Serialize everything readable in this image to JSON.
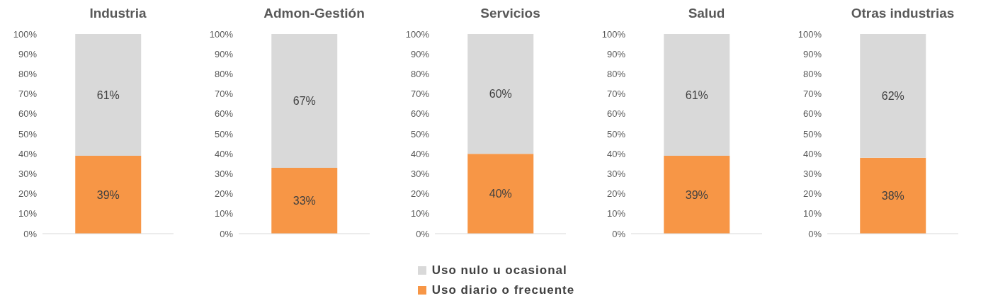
{
  "chart_data": [
    {
      "type": "bar",
      "title": "Industria",
      "categories": [
        null
      ],
      "stacked": true,
      "ylim": [
        0,
        100
      ],
      "yticks": [
        {
          "value": 0,
          "label": "0%"
        },
        {
          "value": 10,
          "label": "10%"
        },
        {
          "value": 20,
          "label": "20%"
        },
        {
          "value": 30,
          "label": "30%"
        },
        {
          "value": 40,
          "label": "40%"
        },
        {
          "value": 50,
          "label": "50%"
        },
        {
          "value": 60,
          "label": "60%"
        },
        {
          "value": 70,
          "label": "70%"
        },
        {
          "value": 80,
          "label": "80%"
        },
        {
          "value": 90,
          "label": "90%"
        },
        {
          "value": 100,
          "label": "100%"
        }
      ],
      "legend": false,
      "series": [
        {
          "color": "#f79646",
          "values": [
            39
          ],
          "value_labels": [
            "39%"
          ]
        },
        {
          "color": "#d9d9d9",
          "values": [
            61
          ],
          "value_labels": [
            "61%"
          ]
        }
      ]
    },
    {
      "type": "bar",
      "title": "Admon-Gestión",
      "categories": [
        null
      ],
      "stacked": true,
      "ylim": [
        0,
        100
      ],
      "yticks": [
        {
          "value": 0,
          "label": "0%"
        },
        {
          "value": 10,
          "label": "10%"
        },
        {
          "value": 20,
          "label": "20%"
        },
        {
          "value": 30,
          "label": "30%"
        },
        {
          "value": 40,
          "label": "40%"
        },
        {
          "value": 50,
          "label": "50%"
        },
        {
          "value": 60,
          "label": "60%"
        },
        {
          "value": 70,
          "label": "70%"
        },
        {
          "value": 80,
          "label": "80%"
        },
        {
          "value": 90,
          "label": "90%"
        },
        {
          "value": 100,
          "label": "100%"
        }
      ],
      "legend": false,
      "series": [
        {
          "color": "#f79646",
          "values": [
            33
          ],
          "value_labels": [
            "33%"
          ]
        },
        {
          "color": "#d9d9d9",
          "values": [
            67
          ],
          "value_labels": [
            "67%"
          ]
        }
      ]
    },
    {
      "type": "bar",
      "title": "Servicios",
      "categories": [
        null
      ],
      "stacked": true,
      "ylim": [
        0,
        100
      ],
      "yticks": [
        {
          "value": 0,
          "label": "0%"
        },
        {
          "value": 10,
          "label": "10%"
        },
        {
          "value": 20,
          "label": "20%"
        },
        {
          "value": 30,
          "label": "30%"
        },
        {
          "value": 40,
          "label": "40%"
        },
        {
          "value": 50,
          "label": "50%"
        },
        {
          "value": 60,
          "label": "60%"
        },
        {
          "value": 70,
          "label": "70%"
        },
        {
          "value": 80,
          "label": "80%"
        },
        {
          "value": 90,
          "label": "90%"
        },
        {
          "value": 100,
          "label": "100%"
        }
      ],
      "legend": "bottom",
      "series": [
        {
          "name": "Uso diario o frecuente",
          "color": "#f79646",
          "values": [
            40
          ],
          "value_labels": [
            "40%"
          ]
        },
        {
          "name": "Uso nulo u ocasional",
          "color": "#d9d9d9",
          "values": [
            60
          ],
          "value_labels": [
            "60%"
          ]
        }
      ]
    },
    {
      "type": "bar",
      "title": "Salud",
      "categories": [
        null
      ],
      "stacked": true,
      "ylim": [
        0,
        100
      ],
      "yticks": [
        {
          "value": 0,
          "label": "0%"
        },
        {
          "value": 10,
          "label": "10%"
        },
        {
          "value": 20,
          "label": "20%"
        },
        {
          "value": 30,
          "label": "30%"
        },
        {
          "value": 40,
          "label": "40%"
        },
        {
          "value": 50,
          "label": "50%"
        },
        {
          "value": 60,
          "label": "60%"
        },
        {
          "value": 70,
          "label": "70%"
        },
        {
          "value": 80,
          "label": "80%"
        },
        {
          "value": 90,
          "label": "90%"
        },
        {
          "value": 100,
          "label": "100%"
        }
      ],
      "legend": false,
      "series": [
        {
          "color": "#f79646",
          "values": [
            39
          ],
          "value_labels": [
            "39%"
          ]
        },
        {
          "color": "#d9d9d9",
          "values": [
            61
          ],
          "value_labels": [
            "61%"
          ]
        }
      ]
    },
    {
      "type": "bar",
      "title": "Otras industrias",
      "categories": [
        null
      ],
      "stacked": true,
      "ylim": [
        0,
        100
      ],
      "yticks": [
        {
          "value": 0,
          "label": "0%"
        },
        {
          "value": 10,
          "label": "10%"
        },
        {
          "value": 20,
          "label": "20%"
        },
        {
          "value": 30,
          "label": "30%"
        },
        {
          "value": 40,
          "label": "40%"
        },
        {
          "value": 50,
          "label": "50%"
        },
        {
          "value": 60,
          "label": "60%"
        },
        {
          "value": 70,
          "label": "70%"
        },
        {
          "value": 80,
          "label": "80%"
        },
        {
          "value": 90,
          "label": "90%"
        },
        {
          "value": 100,
          "label": "100%"
        }
      ],
      "legend": false,
      "series": [
        {
          "color": "#f79646",
          "values": [
            38
          ],
          "value_labels": [
            "38%"
          ]
        },
        {
          "color": "#d9d9d9",
          "values": [
            62
          ],
          "value_labels": [
            "62%"
          ]
        }
      ]
    }
  ]
}
